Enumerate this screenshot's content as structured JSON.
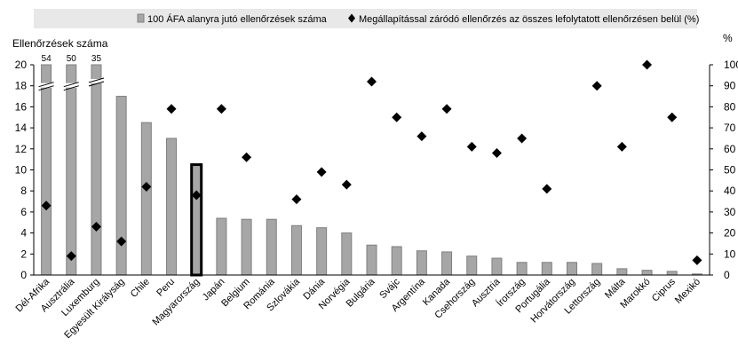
{
  "chart_data": {
    "type": "bar",
    "legend": {
      "position": "top",
      "bar_label": "100 ÁFA alanyra jutó ellenőrzések száma",
      "marker_label": "Megállapítással záródó ellenőrzés az összes lefolytatott ellenőrzésen belül (%)"
    },
    "y_left": {
      "label": "Ellenőrzések száma",
      "ylim": [
        0,
        20
      ],
      "ticks": [
        "0",
        "2",
        "4",
        "6",
        "8",
        "10",
        "12",
        "14",
        "16",
        "18",
        "20"
      ]
    },
    "y_right": {
      "label": "%",
      "ylim": [
        0,
        100
      ],
      "ticks": [
        "0",
        "10",
        "20",
        "30",
        "40",
        "50",
        "60",
        "70",
        "80",
        "90",
        "100"
      ]
    },
    "grid": false,
    "categories": [
      "Dél-Afrika",
      "Ausztrália",
      "Luxemburg",
      "Egyesült Királyság",
      "Chile",
      "Peru",
      "Magyarország",
      "Japán",
      "Belgium",
      "Románia",
      "Szlovákia",
      "Dánia",
      "Norvégia",
      "Bulgária",
      "Svájc",
      "Argentína",
      "Kanada",
      "Csehország",
      "Ausztria",
      "Írország",
      "Portugália",
      "Horvátország",
      "Lettország",
      "Málta",
      "Marokkó",
      "Ciprus",
      "Mexikó"
    ],
    "series": [
      {
        "name": "100 ÁFA alanyra jutó ellenőrzések száma",
        "kind": "bar",
        "axis": "left",
        "values": [
          54,
          50,
          35,
          17,
          14.5,
          13,
          10.5,
          5.4,
          5.3,
          5.3,
          4.7,
          4.5,
          4.0,
          2.85,
          2.7,
          2.3,
          2.2,
          1.8,
          1.6,
          1.2,
          1.2,
          1.2,
          1.1,
          0.6,
          0.45,
          0.35,
          0.1
        ],
        "value_labels": [
          "54",
          "50",
          "35",
          "",
          "",
          "",
          "",
          "",
          "",
          "",
          "",
          "",
          "",
          "",
          "",
          "",
          "",
          "",
          "",
          "",
          "",
          "",
          "",
          "",
          "",
          "",
          ""
        ],
        "highlight": "Magyarország"
      },
      {
        "name": "Megállapítással záródó ellenőrzés az összes lefolytatott ellenőrzésen belül (%)",
        "kind": "marker",
        "axis": "right",
        "values": [
          33,
          9,
          23,
          16,
          42,
          79,
          38,
          79,
          56,
          null,
          36,
          49,
          43,
          92,
          75,
          66,
          79,
          61,
          58,
          65,
          41,
          null,
          90,
          61,
          100,
          75,
          7
        ]
      }
    ]
  },
  "colors": {
    "bar_fill": "#a6a6a6",
    "bar_stroke": "#7f7f7f",
    "highlight_stroke": "#000000",
    "marker": "#000000",
    "legend_bg": "#e8e8e8"
  }
}
